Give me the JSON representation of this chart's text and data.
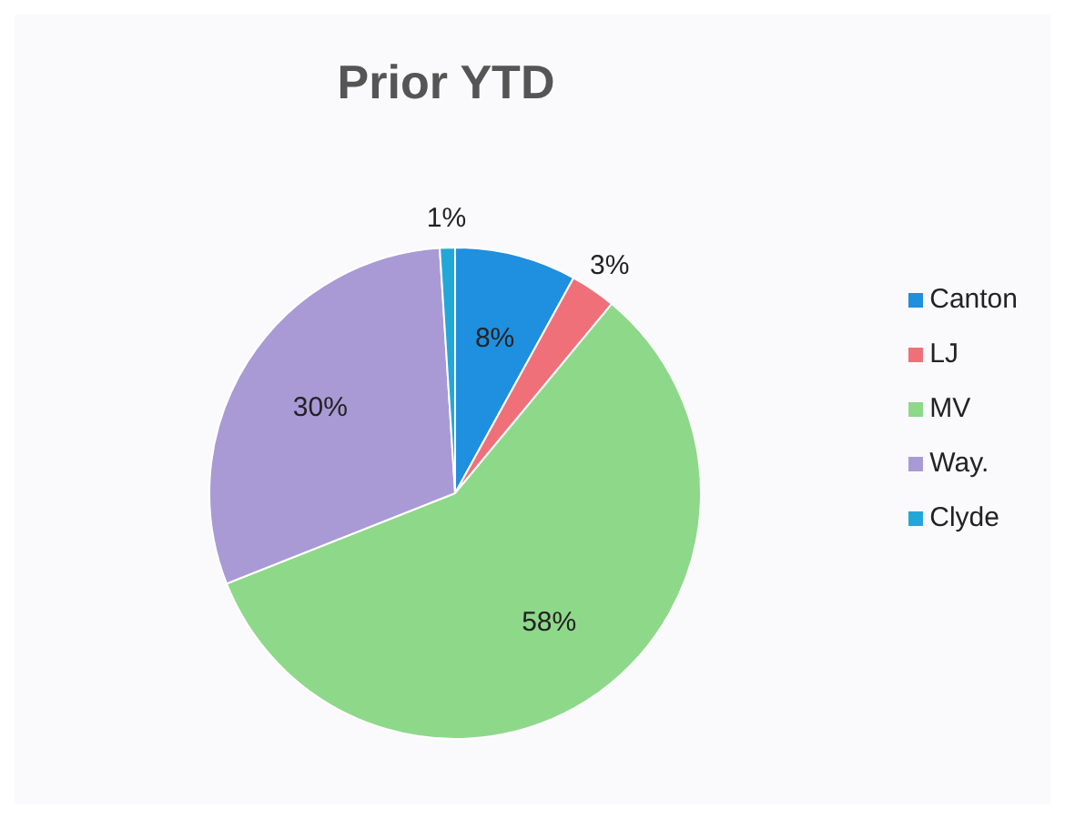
{
  "chart_data": {
    "type": "pie",
    "title": "Prior YTD",
    "categories": [
      "Canton",
      "LJ",
      "MV",
      "Way.",
      "Clyde"
    ],
    "values": [
      8,
      3,
      58,
      30,
      1
    ],
    "colors": [
      "#1f8fe0",
      "#f0707a",
      "#8ed88a",
      "#a99ad6",
      "#22a8d8"
    ],
    "value_labels": [
      "8%",
      "3%",
      "58%",
      "30%",
      "1%"
    ],
    "legend": "right"
  }
}
